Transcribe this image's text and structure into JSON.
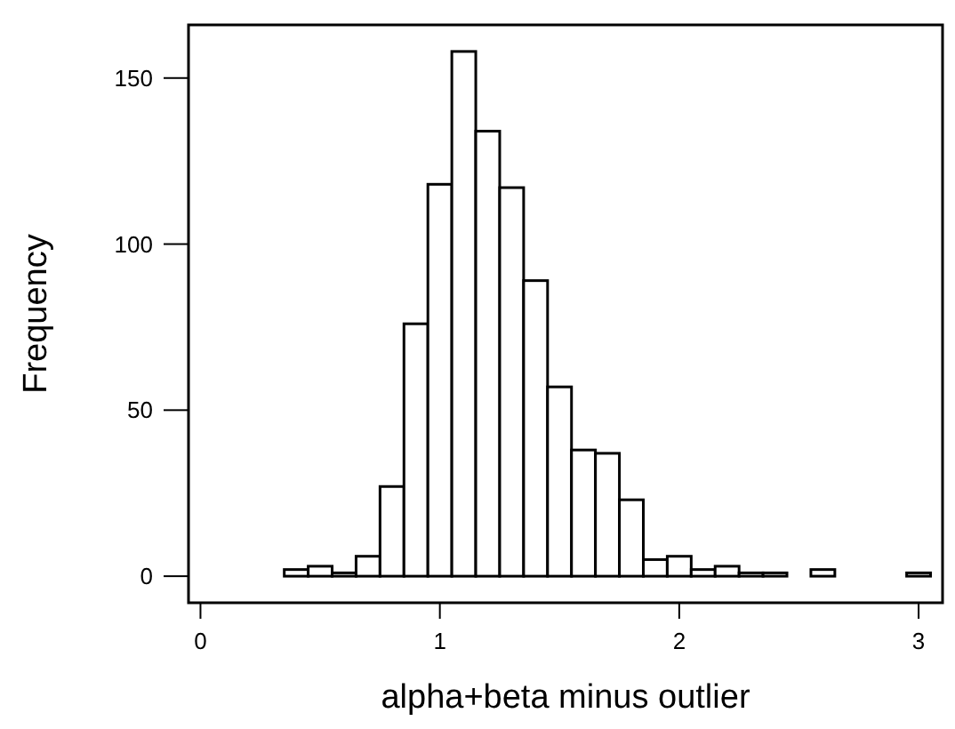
{
  "chart_data": {
    "type": "histogram",
    "xlabel": "alpha+beta minus outlier",
    "ylabel": "Frequency",
    "bins": [
      0.35,
      0.45,
      0.55,
      0.65,
      0.75,
      0.85,
      0.95,
      1.05,
      1.15,
      1.25,
      1.35,
      1.45,
      1.55,
      1.65,
      1.75,
      1.85,
      1.95,
      2.05,
      2.15,
      2.25,
      2.35,
      2.45,
      2.55,
      2.65,
      2.75,
      2.85,
      2.95,
      3.05
    ],
    "values": [
      2,
      3,
      1,
      6,
      27,
      76,
      118,
      158,
      134,
      117,
      89,
      57,
      38,
      37,
      23,
      5,
      6,
      2,
      3,
      1,
      1,
      0,
      2,
      0,
      0,
      0,
      1
    ],
    "color": "#ffffff",
    "xlim": [
      -0.05,
      3.1
    ],
    "xticks": [
      0,
      1,
      2,
      3
    ],
    "ylim": [
      -8,
      166
    ],
    "yticks": [
      0,
      50,
      100,
      150
    ],
    "grid": false
  }
}
